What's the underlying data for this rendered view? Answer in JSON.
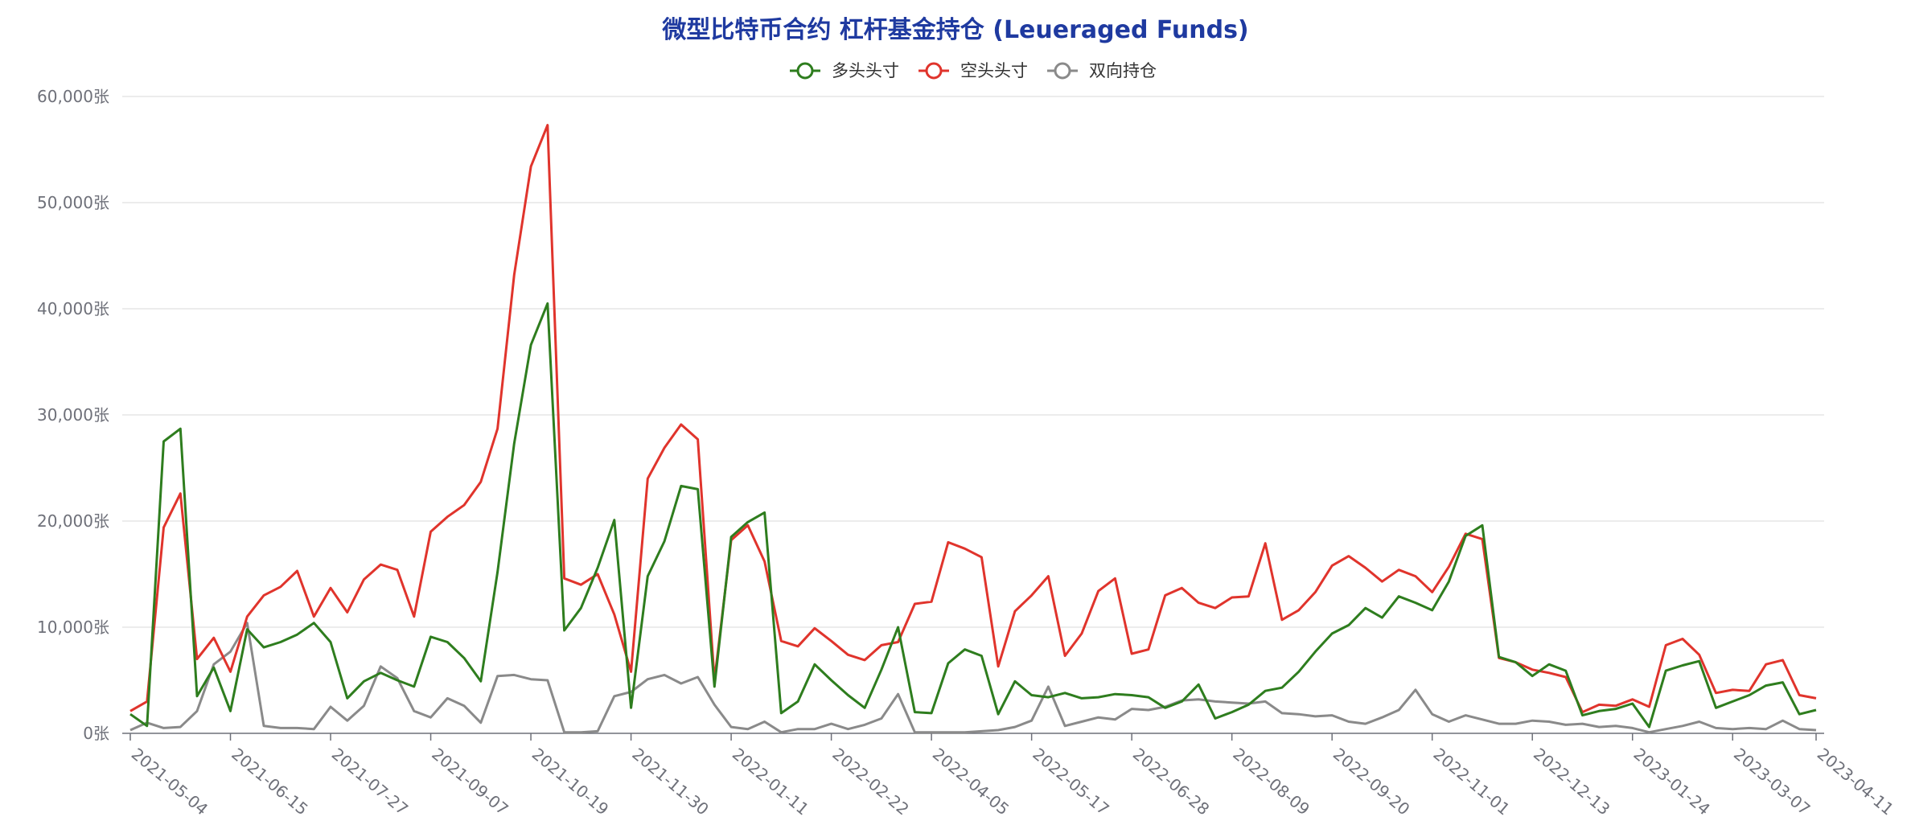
{
  "chart_data": {
    "type": "line",
    "title": "微型比特币合约 杠杆基金持仓 (Leueraged Funds)",
    "y_unit": "张",
    "ylim": [
      0,
      60000
    ],
    "yticks": [
      0,
      10000,
      20000,
      30000,
      40000,
      50000,
      60000
    ],
    "ytick_labels": [
      "0张",
      "10,000张",
      "20,000张",
      "30,000张",
      "40,000张",
      "50,000张",
      "60,000张"
    ],
    "x_tick_labels": [
      "2021-05-04",
      "2021-06-15",
      "2021-07-27",
      "2021-09-07",
      "2021-10-19",
      "2021-11-30",
      "2022-01-11",
      "2022-02-22",
      "2022-04-05",
      "2022-05-17",
      "2022-06-28",
      "2022-08-09",
      "2022-09-20",
      "2022-11-01",
      "2022-12-13",
      "2023-01-24",
      "2023-03-07",
      "2023-04-11"
    ],
    "x_tick_index": [
      0,
      6,
      12,
      18,
      24,
      30,
      36,
      42,
      48,
      54,
      60,
      66,
      72,
      78,
      84,
      90,
      96,
      101
    ],
    "grid": true,
    "legend_position": "top-center",
    "series": [
      {
        "name": "多头头寸",
        "color": "#2e7d1e",
        "values": [
          1800,
          700,
          27500,
          28700,
          3500,
          6200,
          2100,
          9800,
          8100,
          8600,
          9300,
          10400,
          8600,
          3300,
          4900,
          5700,
          5000,
          4400,
          9100,
          8600,
          7100,
          4900,
          15200,
          27300,
          36600,
          40500,
          9700,
          11800,
          15600,
          20100,
          2400,
          14800,
          18100,
          23300,
          23000,
          4400,
          18500,
          19900,
          20800,
          1900,
          3000,
          6500,
          5000,
          3600,
          2400,
          6000,
          10000,
          2000,
          1900,
          6600,
          7900,
          7300,
          1800,
          4900,
          3600,
          3400,
          3800,
          3300,
          3400,
          3700,
          3600,
          3400,
          2400,
          3000,
          4600,
          1400,
          2000,
          2700,
          4000,
          4300,
          5800,
          7700,
          9400,
          10200,
          11800,
          10900,
          12900,
          12300,
          11600,
          14300,
          18600,
          19600,
          7200,
          6700,
          5400,
          6500,
          5900,
          1700,
          2100,
          2300,
          2800,
          600,
          5900,
          6400,
          6800,
          2400,
          3000,
          3600,
          4500,
          4800,
          1800,
          2200
        ]
      },
      {
        "name": "空头头寸",
        "color": "#e0342c",
        "values": [
          2100,
          3000,
          19400,
          22600,
          7000,
          9000,
          5800,
          11000,
          13000,
          13800,
          15300,
          11000,
          13700,
          11400,
          14500,
          15900,
          15400,
          11000,
          19000,
          20400,
          21500,
          23700,
          28700,
          43200,
          53400,
          57300,
          14600,
          14000,
          15000,
          11200,
          5800,
          24000,
          26900,
          29100,
          27700,
          5000,
          18200,
          19600,
          16200,
          8700,
          8200,
          9900,
          8700,
          7400,
          6900,
          8300,
          8600,
          12200,
          12400,
          18000,
          17400,
          16600,
          6300,
          11500,
          13000,
          14800,
          7300,
          9400,
          13400,
          14600,
          7500,
          7900,
          13000,
          13700,
          12300,
          11800,
          12800,
          12900,
          17900,
          10700,
          11600,
          13300,
          15800,
          16700,
          15600,
          14300,
          15400,
          14800,
          13300,
          15700,
          18800,
          18300,
          7100,
          6700,
          6000,
          5700,
          5300,
          2000,
          2700,
          2600,
          3200,
          2500,
          8300,
          8900,
          7400,
          3800,
          4100,
          4000,
          6500,
          6900,
          3600,
          3300
        ]
      },
      {
        "name": "双向持仓",
        "color": "#8a8a8a",
        "values": [
          300,
          1000,
          500,
          600,
          2100,
          6500,
          7700,
          10400,
          700,
          500,
          500,
          400,
          2500,
          1200,
          2600,
          6300,
          5200,
          2100,
          1500,
          3300,
          2600,
          1000,
          5400,
          5500,
          5100,
          5000,
          100,
          100,
          200,
          3500,
          3900,
          5100,
          5500,
          4700,
          5300,
          2700,
          600,
          400,
          1100,
          100,
          400,
          400,
          900,
          400,
          800,
          1400,
          3700,
          100,
          100,
          100,
          100,
          200,
          300,
          600,
          1200,
          4400,
          700,
          1100,
          1500,
          1300,
          2300,
          2200,
          2500,
          3100,
          3200,
          3000,
          2900,
          2800,
          3000,
          1900,
          1800,
          1600,
          1700,
          1100,
          900,
          1500,
          2200,
          4100,
          1800,
          1100,
          1700,
          1300,
          900,
          900,
          1200,
          1100,
          800,
          900,
          600,
          700,
          500,
          100,
          400,
          700,
          1100,
          500,
          400,
          500,
          400,
          1200,
          400,
          300
        ]
      }
    ]
  }
}
